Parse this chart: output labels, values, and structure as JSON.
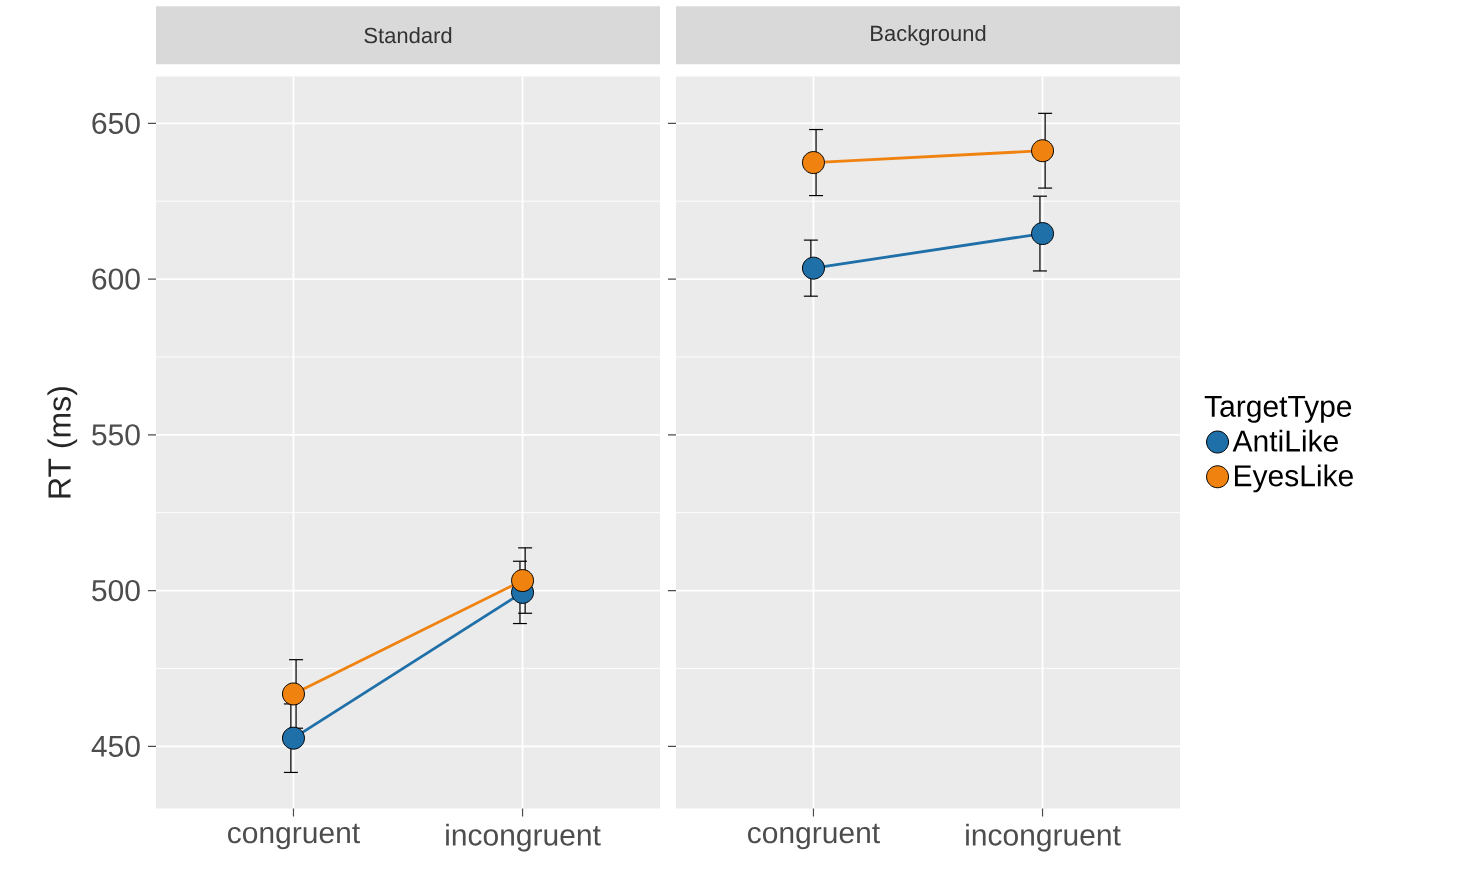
{
  "chart_data": [
    {
      "type": "line",
      "title": "Standard",
      "ylabel": "RT (ms)",
      "categories": [
        "congruent",
        "incongruent"
      ],
      "ylim": [
        430,
        665
      ],
      "yticks": [
        450,
        500,
        550,
        600,
        650
      ],
      "grid": true,
      "marker": "circle",
      "series": [
        {
          "color": "#1f6fa8",
          "values": [
            452.6,
            499.4
          ],
          "errors": [
            11,
            10
          ]
        },
        {
          "color": "#f0820f",
          "values": [
            466.8,
            503.2
          ],
          "errors": [
            11,
            10.5
          ]
        }
      ]
    },
    {
      "type": "line",
      "title": "Background",
      "categories": [
        "congruent",
        "incongruent"
      ],
      "ylim": [
        430,
        665
      ],
      "yticks": [
        450,
        500,
        550,
        600,
        650
      ],
      "grid": true,
      "marker": "circle",
      "tick_labels": "x",
      "legend": "right",
      "legend_title": "TargetType",
      "series": [
        {
          "name": "AntiLike",
          "color": "#1f6fa8",
          "values": [
            603.5,
            614.6
          ],
          "errors": [
            9,
            12
          ]
        },
        {
          "name": "EyesLike",
          "color": "#f0820f",
          "values": [
            637.4,
            641.2
          ],
          "errors": [
            10.6,
            12
          ]
        }
      ]
    }
  ]
}
